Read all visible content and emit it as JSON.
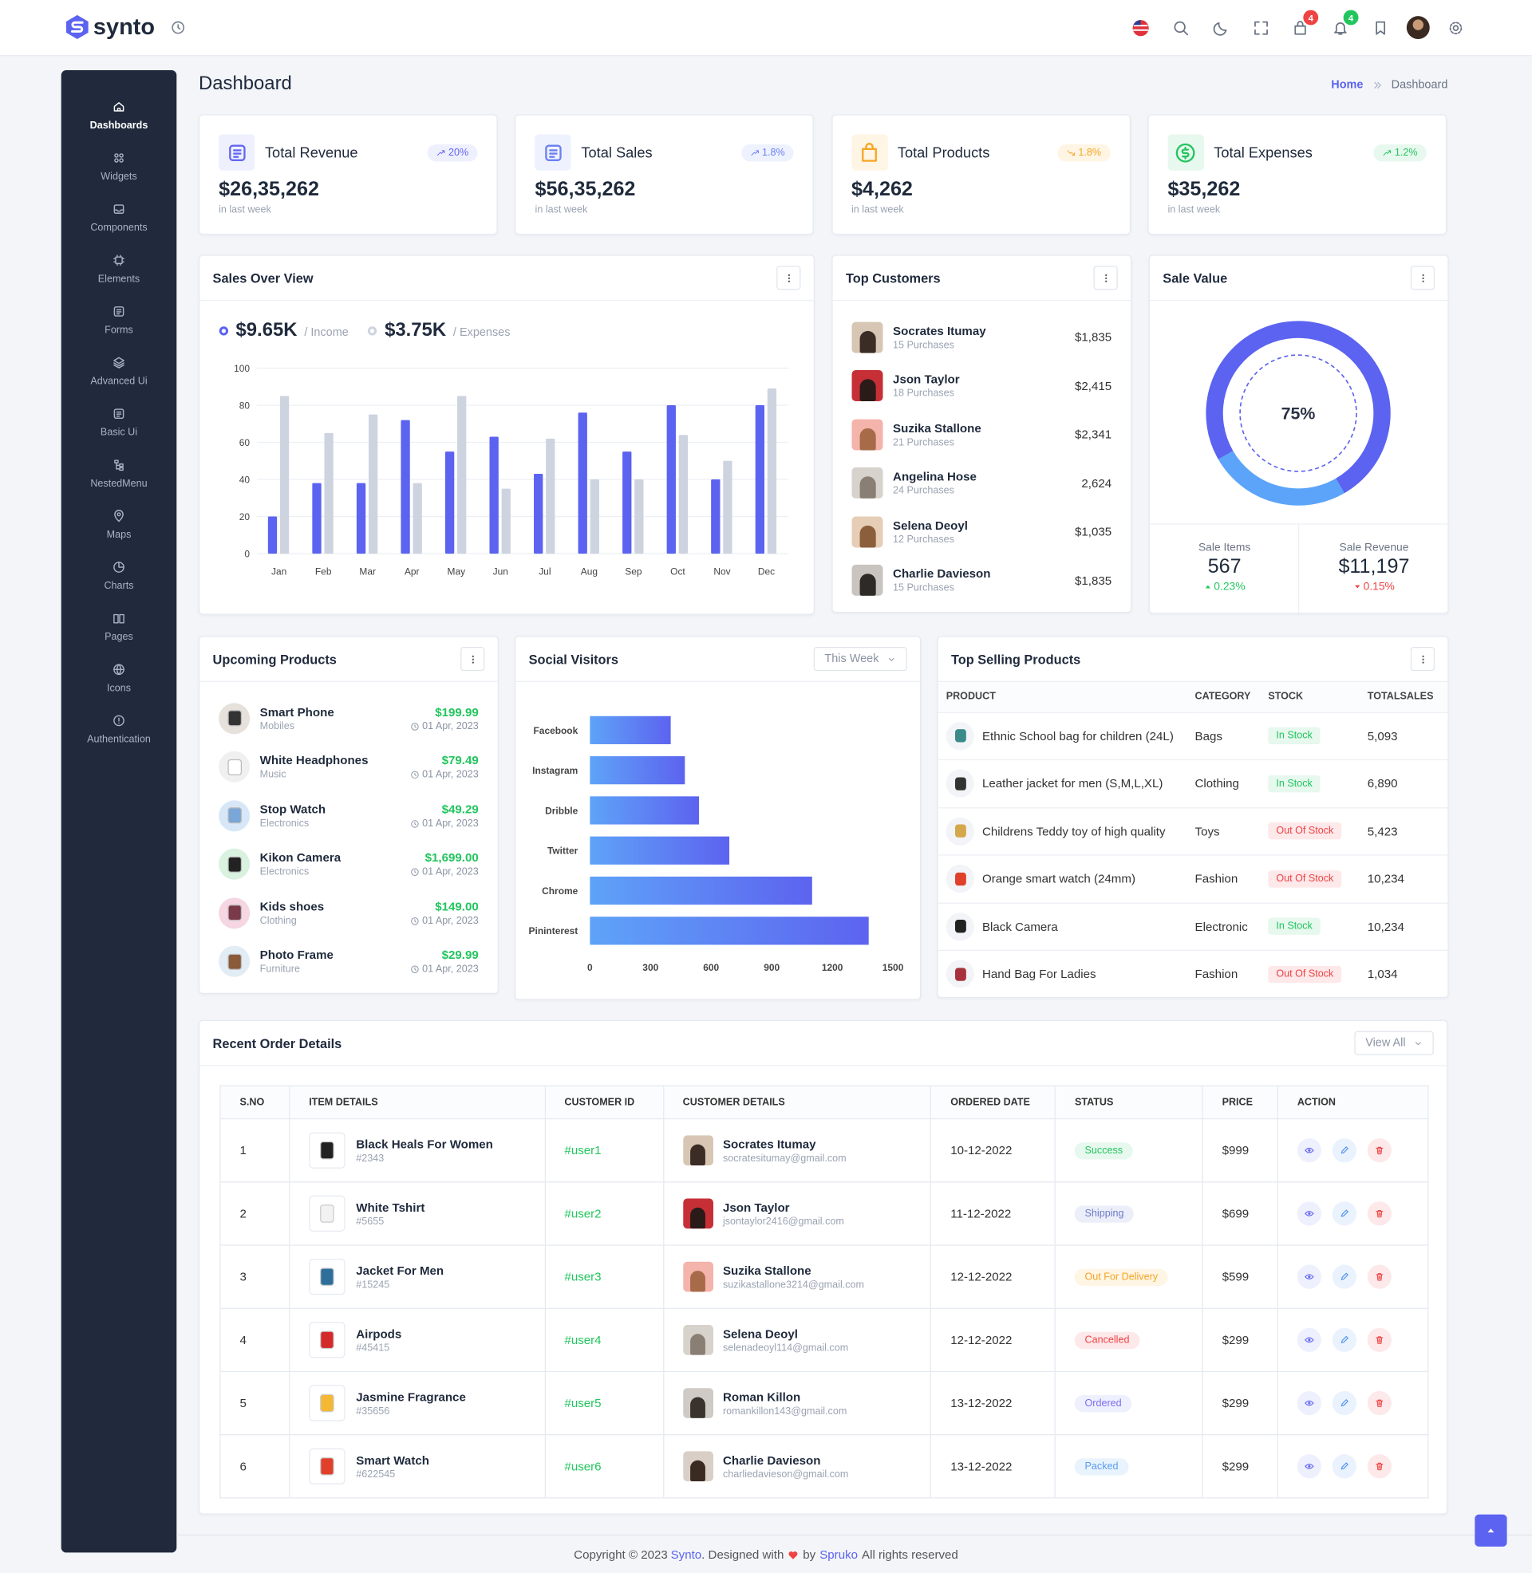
{
  "header": {
    "logo": "synto",
    "badges": [
      4,
      4
    ]
  },
  "sidebar": {
    "menu": [
      "Dashboards",
      "Widgets",
      "Components",
      "Elements",
      "Forms",
      "Advanced Ui",
      "Basic Ui",
      "NestedMenu",
      "Maps",
      "Charts",
      "Pages",
      "Icons",
      "Authentication"
    ]
  },
  "page": {
    "title": "Dashboard",
    "breadcrumb": [
      "Home",
      "Dashboard"
    ]
  },
  "stats": [
    {
      "title": "Total Revenue",
      "value": "$26,35,262",
      "change": "20%",
      "note": "in last week"
    },
    {
      "title": "Total Sales",
      "value": "$56,35,262",
      "change": "1.8%",
      "note": "in last week"
    },
    {
      "title": "Total Products",
      "value": "$4,262",
      "change": "1.8%",
      "note": "in last week"
    },
    {
      "title": "Total Expenses",
      "value": "$35,262",
      "change": "1.2%",
      "note": "in last week"
    }
  ],
  "sales_overview": {
    "title": "Sales Over View",
    "legend": [
      {
        "value": "$9.65K",
        "label": "/ Income"
      },
      {
        "value": "$3.75K",
        "label": "/ Expenses"
      }
    ],
    "chart": {
      "type": "bar",
      "categories": [
        "Jan",
        "Feb",
        "Mar",
        "Apr",
        "May",
        "Jun",
        "Jul",
        "Aug",
        "Sep",
        "Oct",
        "Nov",
        "Dec"
      ],
      "series": [
        {
          "color": "#5b63f0",
          "values": [
            20,
            38,
            38,
            72,
            55,
            63,
            43,
            76,
            55,
            80,
            40,
            80
          ]
        },
        {
          "color": "#cdd4e0",
          "values": [
            85,
            65,
            75,
            38,
            85,
            35,
            62,
            40,
            40,
            64,
            50,
            89
          ]
        }
      ],
      "ylim": [
        0,
        100
      ],
      "yticks": [
        0,
        20,
        40,
        60,
        80,
        100
      ],
      "grid": true
    }
  },
  "top_customers": {
    "title": "Top Customers",
    "rows": [
      {
        "name": "Socrates Itumay",
        "purchases": "15 Purchases",
        "amount": "$1,835"
      },
      {
        "name": "Json Taylor",
        "purchases": "18 Purchases",
        "amount": "$2,415"
      },
      {
        "name": "Suzika Stallone",
        "purchases": "21 Purchases",
        "amount": "$2,341"
      },
      {
        "name": "Angelina Hose",
        "purchases": "24 Purchases",
        "amount": "2,624"
      },
      {
        "name": "Selena Deoyl",
        "purchases": "12 Purchases",
        "amount": "$1,035"
      },
      {
        "name": "Charlie Davieson",
        "purchases": "15 Purchases",
        "amount": "$1,835"
      }
    ]
  },
  "sale_value": {
    "title": "Sale Value",
    "chart": {
      "type": "pie",
      "values": [
        75
      ],
      "value_labels": [
        "75%"
      ],
      "colors": [
        "#5b63f0",
        "#5ba4fa"
      ]
    },
    "stats": [
      {
        "label": "Sale Items",
        "value": "567",
        "change": "0.23%"
      },
      {
        "label": "Sale Revenue",
        "value": "$11,197",
        "change": "0.15%"
      }
    ]
  },
  "upcoming": {
    "title": "Upcoming Products",
    "rows": [
      {
        "name": "Smart Phone",
        "category": "Mobiles",
        "price": "$199.99",
        "date": "01 Apr, 2023"
      },
      {
        "name": "White Headphones",
        "category": "Music",
        "price": "$79.49",
        "date": "01 Apr, 2023"
      },
      {
        "name": "Stop Watch",
        "category": "Electronics",
        "price": "$49.29",
        "date": "01 Apr, 2023"
      },
      {
        "name": "Kikon Camera",
        "category": "Electronics",
        "price": "$1,699.00",
        "date": "01 Apr, 2023"
      },
      {
        "name": "Kids shoes",
        "category": "Clothing",
        "price": "$149.00",
        "date": "01 Apr, 2023"
      },
      {
        "name": "Photo Frame",
        "category": "Furniture",
        "price": "$29.99",
        "date": "01 Apr, 2023"
      }
    ]
  },
  "social": {
    "title": "Social Visitors",
    "filter": "This Week",
    "chart": {
      "type": "bar",
      "orientation": "horizontal",
      "categories": [
        "Facebook",
        "Instagram",
        "Dribble",
        "Twitter",
        "Chrome",
        "Pininterest"
      ],
      "values": [
        400,
        470,
        540,
        690,
        1100,
        1380
      ],
      "xlim": [
        0,
        1500
      ],
      "xticks": [
        0,
        300,
        600,
        900,
        1200,
        1500
      ],
      "gradient": [
        "#5ea3f8",
        "#5d63ef"
      ]
    }
  },
  "top_selling": {
    "title": "Top Selling Products",
    "columns": [
      "PRODUCT",
      "CATEGORY",
      "STOCK",
      "TOTALSALES"
    ],
    "rows": [
      [
        "Ethnic School bag for children (24L)",
        "Bags",
        "In Stock",
        "5,093"
      ],
      [
        "Leather jacket for men (S,M,L,XL)",
        "Clothing",
        "In Stock",
        "6,890"
      ],
      [
        "Childrens Teddy toy of high quality",
        "Toys",
        "Out Of Stock",
        "5,423"
      ],
      [
        "Orange smart watch (24mm)",
        "Fashion",
        "Out Of Stock",
        "10,234"
      ],
      [
        "Black Camera",
        "Electronic",
        "In Stock",
        "10,234"
      ],
      [
        "Hand Bag For Ladies",
        "Fashion",
        "Out Of Stock",
        "1,034"
      ]
    ]
  },
  "orders": {
    "title": "Recent Order Details",
    "button": "View All",
    "columns": [
      "S.NO",
      "ITEM DETAILS",
      "CUSTOMER ID",
      "CUSTOMER DETAILS",
      "ORDERED DATE",
      "STATUS",
      "PRICE",
      "ACTION"
    ],
    "rows": [
      {
        "sno": 1,
        "item": "Black Heals For Women",
        "code": "#2343",
        "customer_id": "#user1",
        "customer": "Socrates Itumay",
        "email": "socratesitumay@gmail.com",
        "date": "10-12-2022",
        "status": "Success",
        "price": "$999"
      },
      {
        "sno": 2,
        "item": "White Tshirt",
        "code": "#5655",
        "customer_id": "#user2",
        "customer": "Json Taylor",
        "email": "jsontaylor2416@gmail.com",
        "date": "11-12-2022",
        "status": "Shipping",
        "price": "$699"
      },
      {
        "sno": 3,
        "item": "Jacket For Men",
        "code": "#15245",
        "customer_id": "#user3",
        "customer": "Suzika Stallone",
        "email": "suzikastallone3214@gmail.com",
        "date": "12-12-2022",
        "status": "Out For Delivery",
        "price": "$599"
      },
      {
        "sno": 4,
        "item": "Airpods",
        "code": "#45415",
        "customer_id": "#user4",
        "customer": "Selena Deoyl",
        "email": "selenadeoyl114@gmail.com",
        "date": "12-12-2022",
        "status": "Cancelled",
        "price": "$299"
      },
      {
        "sno": 5,
        "item": "Jasmine Fragrance",
        "code": "#35656",
        "customer_id": "#user5",
        "customer": "Roman Killon",
        "email": "romankillon143@gmail.com",
        "date": "13-12-2022",
        "status": "Ordered",
        "price": "$299"
      },
      {
        "sno": 6,
        "item": "Smart Watch",
        "code": "#622545",
        "customer_id": "#user6",
        "customer": "Charlie Davieson",
        "email": "charliedavieson@gmail.com",
        "date": "13-12-2022",
        "status": "Packed",
        "price": "$299"
      }
    ]
  },
  "footer": [
    "Copyright © 2023",
    "Synto",
    ". Designed with",
    "by",
    "Spruko",
    "All rights reserved"
  ]
}
